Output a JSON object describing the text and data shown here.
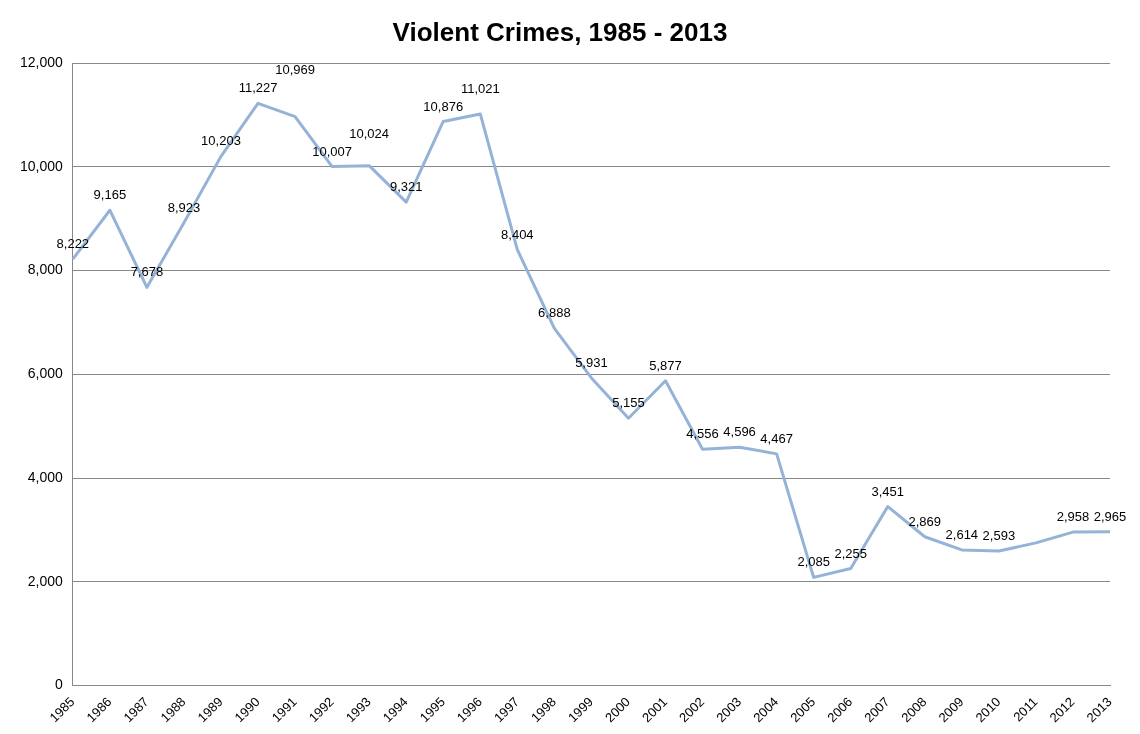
{
  "chart_data": {
    "type": "line",
    "title": "Violent Crimes, 1985 - 2013",
    "categories": [
      "1985",
      "1986",
      "1987",
      "1988",
      "1989",
      "1990",
      "1991",
      "1992",
      "1993",
      "1994",
      "1995",
      "1996",
      "1997",
      "1998",
      "1999",
      "2000",
      "2001",
      "2002",
      "2003",
      "2004",
      "2005",
      "2006",
      "2007",
      "2008",
      "2009",
      "2010",
      "2011",
      "2012",
      "2013"
    ],
    "series": [
      {
        "color": "#95b3d7",
        "values": [
          8222,
          9165,
          7678,
          8923,
          10203,
          11227,
          10969,
          10007,
          10024,
          9321,
          10876,
          11021,
          8404,
          6888,
          5931,
          5155,
          5877,
          4556,
          4596,
          4467,
          2085,
          2255,
          3451,
          2869,
          2614,
          2593,
          2750,
          2958,
          2965
        ],
        "value_labels": [
          "8,222",
          "9,165",
          "7,678",
          "8,923",
          "10,203",
          "11,227",
          "10,969",
          "10,007",
          "10,024",
          "9,321",
          "10,876",
          "11,021",
          "8,404",
          "6,888",
          "5,931",
          "5,155",
          "5,877",
          "4,556",
          "4,596",
          "4,467",
          "2,085",
          "2,255",
          "3,451",
          "2,869",
          "2,614",
          "2,593",
          null,
          "2,958",
          "2,965"
        ]
      }
    ],
    "ylim": [
      0,
      12000
    ],
    "yticks": [
      {
        "value": 0,
        "label": "0"
      },
      {
        "value": 2000,
        "label": "2,000"
      },
      {
        "value": 4000,
        "label": "4,000"
      },
      {
        "value": 6000,
        "label": "6,000"
      },
      {
        "value": 8000,
        "label": "8,000"
      },
      {
        "value": 10000,
        "label": "10,000"
      },
      {
        "value": 12000,
        "label": "12,000"
      }
    ],
    "grid": "y",
    "legend": false,
    "marker": "none",
    "line_style": "solid"
  }
}
